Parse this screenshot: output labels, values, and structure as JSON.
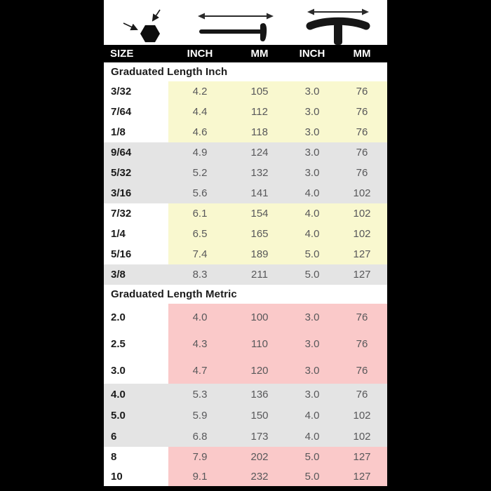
{
  "chart_data": {
    "type": "table",
    "header_icons": [
      "hex-key-size-icon",
      "l-key-long-arm-length-icon",
      "t-handle-length-icon"
    ],
    "columns": [
      "SIZE",
      "INCH",
      "MM",
      "INCH",
      "MM"
    ],
    "sections": [
      {
        "title": "Graduated Length Inch",
        "rows": [
          {
            "size": "3/32",
            "values": [
              "4.2",
              "105",
              "3.0",
              "76"
            ],
            "highlight": "yellow"
          },
          {
            "size": "7/64",
            "values": [
              "4.4",
              "112",
              "3.0",
              "76"
            ],
            "highlight": "yellow"
          },
          {
            "size": "1/8",
            "values": [
              "4.6",
              "118",
              "3.0",
              "76"
            ],
            "highlight": "yellow"
          },
          {
            "size": "9/64",
            "values": [
              "4.9",
              "124",
              "3.0",
              "76"
            ],
            "highlight": "gray"
          },
          {
            "size": "5/32",
            "values": [
              "5.2",
              "132",
              "3.0",
              "76"
            ],
            "highlight": "gray"
          },
          {
            "size": "3/16",
            "values": [
              "5.6",
              "141",
              "4.0",
              "102"
            ],
            "highlight": "gray"
          },
          {
            "size": "7/32",
            "values": [
              "6.1",
              "154",
              "4.0",
              "102"
            ],
            "highlight": "yellow"
          },
          {
            "size": "1/4",
            "values": [
              "6.5",
              "165",
              "4.0",
              "102"
            ],
            "highlight": "yellow"
          },
          {
            "size": "5/16",
            "values": [
              "7.4",
              "189",
              "5.0",
              "127"
            ],
            "highlight": "yellow"
          },
          {
            "size": "3/8",
            "values": [
              "8.3",
              "211",
              "5.0",
              "127"
            ],
            "highlight": "gray"
          }
        ]
      },
      {
        "title": "Graduated Length Metric",
        "rows": [
          {
            "size": "2.0",
            "values": [
              "4.0",
              "100",
              "3.0",
              "76"
            ],
            "highlight": "pink"
          },
          {
            "size": "2.5",
            "values": [
              "4.3",
              "110",
              "3.0",
              "76"
            ],
            "highlight": "pink"
          },
          {
            "size": "3.0",
            "values": [
              "4.7",
              "120",
              "3.0",
              "76"
            ],
            "highlight": "pink"
          },
          {
            "size": "4.0",
            "values": [
              "5.3",
              "136",
              "3.0",
              "76"
            ],
            "highlight": "gray"
          },
          {
            "size": "5.0",
            "values": [
              "5.9",
              "150",
              "4.0",
              "102"
            ],
            "highlight": "gray"
          },
          {
            "size": "6",
            "values": [
              "6.8",
              "173",
              "4.0",
              "102"
            ],
            "highlight": "gray"
          },
          {
            "size": "8",
            "values": [
              "7.9",
              "202",
              "5.0",
              "127"
            ],
            "highlight": "pink"
          },
          {
            "size": "10",
            "values": [
              "9.1",
              "232",
              "5.0",
              "127"
            ],
            "highlight": "pink"
          }
        ]
      }
    ],
    "colors": {
      "frame": "#000000",
      "panel_bg": "#ffffff",
      "header_bg": "#000000",
      "header_text": "#ffffff",
      "highlight_yellow": "#f9f8cf",
      "highlight_pink": "#fac9c9",
      "highlight_gray": "#e4e4e4",
      "size_text": "#1b1b1b",
      "value_text": "#58585a"
    }
  }
}
